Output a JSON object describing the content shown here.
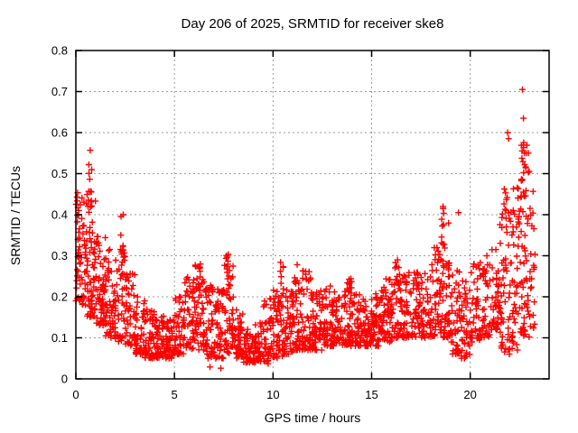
{
  "chart_data": {
    "type": "scatter",
    "title": "Day 206 of 2025, SRMTID for receiver ske8",
    "xlabel": "GPS time / hours",
    "ylabel": "SRMTID / TECUs",
    "xlim": [
      0,
      24
    ],
    "ylim": [
      0,
      0.8
    ],
    "x_tick_values": [
      0,
      5,
      10,
      15,
      20
    ],
    "x_tick_labels": [
      "0",
      "5",
      "10",
      "15",
      "20"
    ],
    "y_tick_values": [
      0,
      0.1,
      0.2,
      0.3,
      0.4,
      0.5,
      0.6,
      0.7,
      0.8
    ],
    "y_tick_labels": [
      "0",
      "0.1",
      "0.2",
      "0.3",
      "0.4",
      "0.5",
      "0.6",
      "0.7",
      "0.8"
    ],
    "grid": true,
    "legend": "none",
    "marker": "plus",
    "marker_color": "#ff0000",
    "grid_color": "#9b9b9b",
    "border_color": "#000000",
    "background_color": "#ffffff",
    "x_data_start": 0.0,
    "x_data_end": 23.3,
    "y_data_min": 0.026,
    "y_data_max": 0.71,
    "band_bins_format": "[hour_start, y_min, y_max, count, bin_width]",
    "band_bins": [
      [
        0.0,
        0.18,
        0.47,
        55,
        0.5
      ],
      [
        0.5,
        0.15,
        0.45,
        60,
        0.5
      ],
      [
        1.0,
        0.13,
        0.36,
        55,
        0.5
      ],
      [
        1.5,
        0.1,
        0.32,
        50,
        0.5
      ],
      [
        2.0,
        0.09,
        0.33,
        45,
        0.5
      ],
      [
        2.5,
        0.08,
        0.26,
        45,
        0.5
      ],
      [
        3.0,
        0.06,
        0.2,
        45,
        0.5
      ],
      [
        3.5,
        0.05,
        0.17,
        45,
        0.5
      ],
      [
        4.0,
        0.05,
        0.16,
        45,
        0.5
      ],
      [
        4.5,
        0.05,
        0.15,
        45,
        0.5
      ],
      [
        5.0,
        0.06,
        0.2,
        45,
        0.5
      ],
      [
        5.5,
        0.07,
        0.26,
        45,
        0.5
      ],
      [
        6.0,
        0.07,
        0.28,
        48,
        0.5
      ],
      [
        6.5,
        0.05,
        0.24,
        48,
        0.5
      ],
      [
        7.0,
        0.05,
        0.22,
        48,
        0.5
      ],
      [
        7.5,
        0.06,
        0.28,
        48,
        0.5
      ],
      [
        8.0,
        0.05,
        0.17,
        45,
        0.5
      ],
      [
        8.5,
        0.04,
        0.15,
        45,
        0.5
      ],
      [
        9.0,
        0.04,
        0.14,
        45,
        0.5
      ],
      [
        9.5,
        0.04,
        0.2,
        45,
        0.5
      ],
      [
        10.0,
        0.05,
        0.24,
        48,
        0.5
      ],
      [
        10.5,
        0.06,
        0.22,
        48,
        0.5
      ],
      [
        11.0,
        0.07,
        0.24,
        48,
        0.5
      ],
      [
        11.5,
        0.07,
        0.27,
        48,
        0.5
      ],
      [
        12.0,
        0.07,
        0.22,
        48,
        0.5
      ],
      [
        12.5,
        0.08,
        0.23,
        48,
        0.5
      ],
      [
        13.0,
        0.08,
        0.22,
        48,
        0.5
      ],
      [
        13.5,
        0.08,
        0.25,
        48,
        0.5
      ],
      [
        14.0,
        0.08,
        0.21,
        48,
        0.5
      ],
      [
        14.5,
        0.08,
        0.2,
        48,
        0.5
      ],
      [
        15.0,
        0.08,
        0.21,
        48,
        0.5
      ],
      [
        15.5,
        0.09,
        0.25,
        48,
        0.5
      ],
      [
        16.0,
        0.1,
        0.28,
        48,
        0.5
      ],
      [
        16.5,
        0.1,
        0.26,
        45,
        0.5
      ],
      [
        17.0,
        0.1,
        0.26,
        45,
        0.5
      ],
      [
        17.5,
        0.1,
        0.28,
        45,
        0.5
      ],
      [
        18.0,
        0.1,
        0.32,
        45,
        0.5
      ],
      [
        18.5,
        0.1,
        0.38,
        48,
        0.5
      ],
      [
        19.0,
        0.06,
        0.28,
        42,
        0.5
      ],
      [
        19.5,
        0.05,
        0.24,
        42,
        0.5
      ],
      [
        20.0,
        0.09,
        0.28,
        42,
        0.5
      ],
      [
        20.5,
        0.1,
        0.3,
        42,
        0.5
      ],
      [
        21.0,
        0.12,
        0.32,
        42,
        0.5
      ],
      [
        21.5,
        0.06,
        0.44,
        45,
        0.5
      ],
      [
        22.0,
        0.07,
        0.48,
        50,
        0.5
      ],
      [
        22.5,
        0.1,
        0.56,
        50,
        0.5
      ],
      [
        23.0,
        0.12,
        0.5,
        22,
        0.3
      ]
    ],
    "spike_columns_format": "[hour_center, y_from, y_to, count]",
    "spike_columns": [
      [
        0.08,
        0.3,
        0.5,
        8
      ],
      [
        0.72,
        0.4,
        0.52,
        10
      ],
      [
        2.35,
        0.28,
        0.4,
        8
      ],
      [
        6.3,
        0.22,
        0.3,
        6
      ],
      [
        7.7,
        0.2,
        0.31,
        10
      ],
      [
        10.45,
        0.22,
        0.29,
        6
      ],
      [
        11.15,
        0.22,
        0.28,
        5
      ],
      [
        13.9,
        0.2,
        0.25,
        5
      ],
      [
        16.3,
        0.22,
        0.29,
        5
      ],
      [
        18.6,
        0.28,
        0.42,
        10
      ],
      [
        21.8,
        0.35,
        0.47,
        10
      ],
      [
        22.65,
        0.44,
        0.58,
        12
      ],
      [
        22.9,
        0.5,
        0.58,
        6
      ]
    ],
    "notable_points_format": "[hour, value]",
    "notable_points": [
      [
        22.65,
        0.705
      ],
      [
        22.7,
        0.635
      ],
      [
        21.9,
        0.6
      ],
      [
        21.95,
        0.585
      ],
      [
        0.73,
        0.557
      ],
      [
        0.66,
        0.522
      ],
      [
        0.8,
        0.51
      ],
      [
        19.4,
        0.405
      ],
      [
        2.4,
        0.4
      ],
      [
        18.62,
        0.42
      ],
      [
        9.75,
        0.037
      ],
      [
        6.8,
        0.029
      ],
      [
        7.35,
        0.026
      ]
    ]
  }
}
